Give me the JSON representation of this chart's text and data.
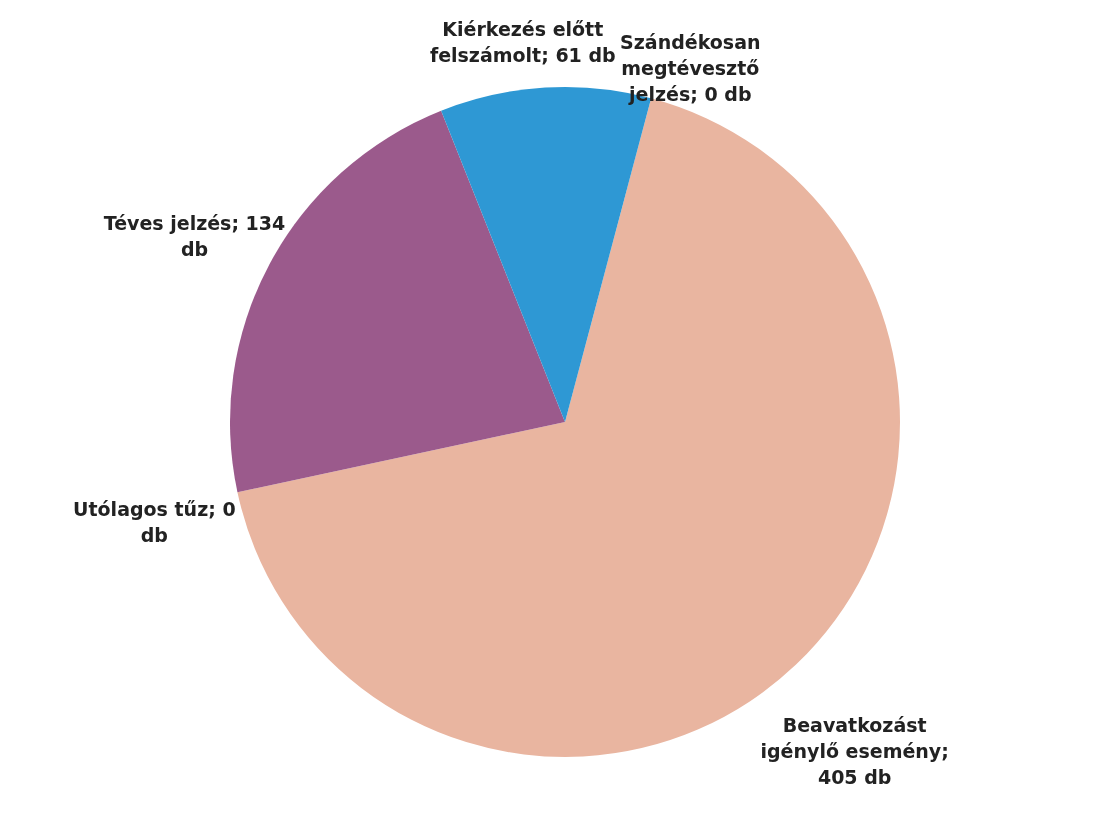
{
  "chart_data": {
    "type": "pie",
    "categories": [
      "Beavatkozást igénylő esemény",
      "Utólagos tűz",
      "Téves jelzés",
      "Kiérkezés előtt felszámolt",
      "Szándékosan megtévesztő jelzés"
    ],
    "values": [
      405,
      0,
      134,
      61,
      0
    ],
    "value_labels": [
      "; 405 db",
      "; 0 db",
      "; 134 db",
      "; 61 db",
      "; 0 db"
    ],
    "colors": [
      "#e9b5a0",
      "#c0504d",
      "#9b5a8c",
      "#2e98d4",
      "#4f81bd"
    ]
  }
}
